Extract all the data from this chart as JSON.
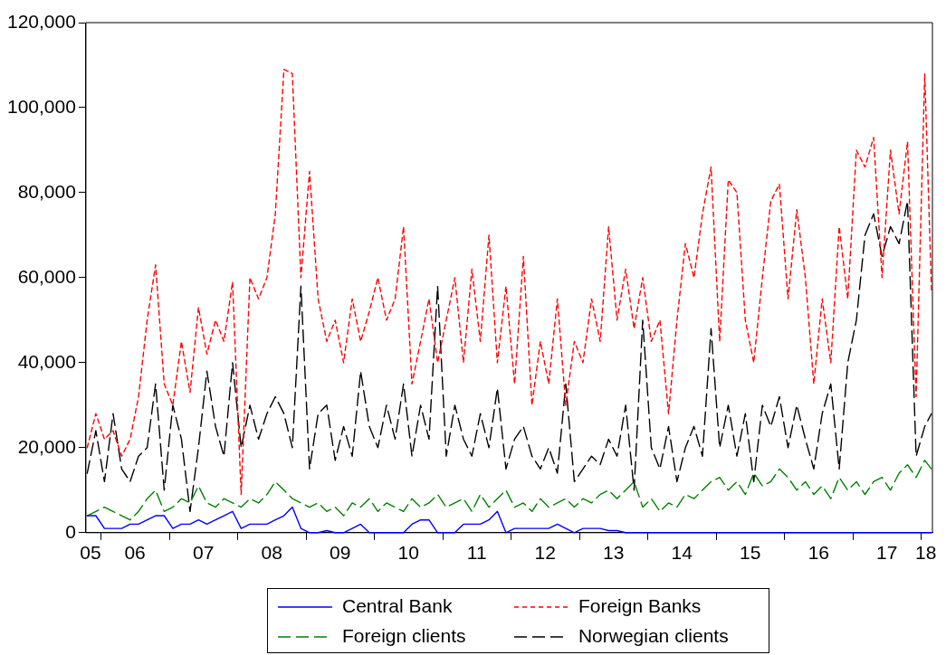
{
  "chart_data": {
    "type": "line",
    "x": [
      "2005-10-19",
      "2005-12-04",
      "2006-01-19",
      "2006-03-06",
      "2006-04-21",
      "2006-06-05",
      "2006-07-20",
      "2006-09-04",
      "2006-10-19",
      "2006-12-04",
      "2007-01-19",
      "2007-03-06",
      "2007-04-21",
      "2007-06-05",
      "2007-07-20",
      "2007-09-04",
      "2007-10-19",
      "2007-12-04",
      "2008-01-19",
      "2008-03-06",
      "2008-04-21",
      "2008-06-05",
      "2008-07-20",
      "2008-09-04",
      "2008-10-19",
      "2008-12-04",
      "2009-01-19",
      "2009-03-06",
      "2009-04-21",
      "2009-06-05",
      "2009-07-20",
      "2009-09-04",
      "2009-10-19",
      "2009-12-04",
      "2010-01-19",
      "2010-03-06",
      "2010-04-21",
      "2010-06-05",
      "2010-07-20",
      "2010-09-04",
      "2010-10-19",
      "2010-12-04",
      "2011-01-19",
      "2011-03-06",
      "2011-04-21",
      "2011-06-05",
      "2011-07-20",
      "2011-09-04",
      "2011-10-19",
      "2011-12-04",
      "2012-01-19",
      "2012-03-06",
      "2012-04-21",
      "2012-06-05",
      "2012-07-20",
      "2012-09-04",
      "2012-10-19",
      "2012-12-04",
      "2013-01-19",
      "2013-03-06",
      "2013-04-21",
      "2013-06-05",
      "2013-07-20",
      "2013-09-04",
      "2013-10-19",
      "2013-12-04",
      "2014-01-19",
      "2014-03-06",
      "2014-04-21",
      "2014-06-05",
      "2014-07-20",
      "2014-09-04",
      "2014-10-19",
      "2014-12-04",
      "2015-01-19",
      "2015-03-06",
      "2015-04-21",
      "2015-06-05",
      "2015-07-20",
      "2015-09-04",
      "2015-10-19",
      "2015-12-04",
      "2016-01-19",
      "2016-03-06",
      "2016-04-21",
      "2016-06-05",
      "2016-07-20",
      "2016-09-04",
      "2016-10-19",
      "2016-12-04",
      "2017-01-19",
      "2017-03-06",
      "2017-04-21",
      "2017-06-05",
      "2017-07-20",
      "2017-09-04",
      "2017-10-19",
      "2017-12-04",
      "2018-01-19",
      "2018-02-24"
    ],
    "series": [
      {
        "name": "Central Bank",
        "color": "#0000ff",
        "line_style": "solid",
        "values": [
          4000,
          4000,
          1000,
          1000,
          1000,
          2000,
          2000,
          3000,
          4000,
          4000,
          1000,
          2000,
          2000,
          3000,
          2000,
          3000,
          4000,
          5000,
          1000,
          2000,
          2000,
          2000,
          3000,
          4000,
          6000,
          1000,
          0,
          0,
          500,
          0,
          0,
          1000,
          2000,
          0,
          0,
          0,
          0,
          0,
          2000,
          3000,
          3000,
          0,
          0,
          0,
          2000,
          2000,
          2000,
          3000,
          5000,
          0,
          1000,
          1000,
          1000,
          1000,
          1000,
          2000,
          1000,
          0,
          1000,
          1000,
          1000,
          500,
          500,
          0,
          0,
          0,
          0,
          0,
          0,
          0,
          0,
          0,
          0,
          0,
          0,
          0,
          0,
          0,
          0,
          0,
          0,
          0,
          0,
          0,
          0,
          0,
          0,
          0,
          0,
          0,
          0,
          0,
          0,
          0,
          0,
          0,
          0,
          0,
          0,
          0
        ]
      },
      {
        "name": "Foreign Banks",
        "color": "#ff0000",
        "line_style": "dotted",
        "values": [
          20000,
          28000,
          22000,
          24000,
          18000,
          22000,
          32000,
          50000,
          63000,
          35000,
          30000,
          45000,
          33000,
          53000,
          42000,
          50000,
          45000,
          59000,
          9000,
          60000,
          55000,
          60000,
          75000,
          109000,
          108000,
          60000,
          85000,
          55000,
          45000,
          50000,
          40000,
          55000,
          45000,
          52000,
          60000,
          50000,
          55000,
          72000,
          35000,
          45000,
          55000,
          40000,
          50000,
          60000,
          40000,
          62000,
          45000,
          70000,
          40000,
          58000,
          35000,
          65000,
          30000,
          45000,
          35000,
          55000,
          30000,
          45000,
          40000,
          55000,
          45000,
          72000,
          50000,
          62000,
          48000,
          60000,
          45000,
          50000,
          28000,
          50000,
          68000,
          60000,
          75000,
          86000,
          45000,
          83000,
          80000,
          50000,
          40000,
          60000,
          78000,
          82000,
          55000,
          76000,
          60000,
          35000,
          55000,
          40000,
          72000,
          55000,
          90000,
          86000,
          93000,
          60000,
          90000,
          75000,
          92000,
          32000,
          108000,
          57000
        ]
      },
      {
        "name": "Foreign clients",
        "color": "#008000",
        "line_style": "dashed",
        "values": [
          4000,
          5000,
          6000,
          5000,
          4000,
          3000,
          5000,
          8000,
          10000,
          5000,
          6000,
          8000,
          7000,
          11000,
          7000,
          6000,
          8000,
          7000,
          6000,
          8000,
          7000,
          9000,
          12000,
          10000,
          8000,
          7000,
          6000,
          7000,
          5000,
          6000,
          4000,
          7000,
          6000,
          8000,
          5000,
          7000,
          6000,
          5000,
          8000,
          6000,
          7000,
          9000,
          6000,
          7000,
          8000,
          5000,
          9000,
          6000,
          8000,
          10000,
          6000,
          7000,
          5000,
          8000,
          6000,
          7000,
          8000,
          6000,
          8000,
          7000,
          9000,
          10000,
          8000,
          10000,
          12000,
          6000,
          8000,
          5000,
          7000,
          6000,
          9000,
          8000,
          10000,
          12000,
          13000,
          10000,
          12000,
          9000,
          14000,
          11000,
          12000,
          15000,
          13000,
          10000,
          12000,
          9000,
          11000,
          8000,
          13000,
          10000,
          12000,
          9000,
          12000,
          13000,
          10000,
          14000,
          16000,
          13000,
          17000,
          15000
        ]
      },
      {
        "name": "Norwegian clients",
        "color": "#000000",
        "line_style": "dashed",
        "values": [
          14000,
          24000,
          12000,
          28000,
          15000,
          12000,
          18000,
          20000,
          35000,
          10000,
          30000,
          22000,
          5000,
          20000,
          38000,
          25000,
          18000,
          40000,
          20000,
          30000,
          22000,
          28000,
          32000,
          28000,
          20000,
          58000,
          15000,
          28000,
          30000,
          17000,
          25000,
          18000,
          38000,
          25000,
          20000,
          30000,
          22000,
          35000,
          18000,
          30000,
          22000,
          58000,
          18000,
          30000,
          22000,
          18000,
          28000,
          20000,
          34000,
          15000,
          22000,
          25000,
          18000,
          15000,
          20000,
          14000,
          35000,
          12000,
          15000,
          18000,
          16000,
          22000,
          18000,
          30000,
          10000,
          50000,
          20000,
          15000,
          25000,
          12000,
          20000,
          25000,
          18000,
          48000,
          20000,
          30000,
          18000,
          28000,
          12000,
          30000,
          25000,
          32000,
          20000,
          30000,
          22000,
          15000,
          28000,
          35000,
          15000,
          40000,
          50000,
          70000,
          75000,
          65000,
          72000,
          68000,
          78000,
          18000,
          25000,
          28000
        ]
      }
    ],
    "xlim": [
      "2005-10-12",
      "2018-03-01"
    ],
    "xticks": [
      {
        "value": "2005-11-05",
        "label": "05"
      },
      {
        "value": "2006",
        "label": null
      },
      {
        "value": "2006-07-01",
        "label": "06"
      },
      {
        "value": "2007",
        "label": null
      },
      {
        "value": "2007-07-01",
        "label": "07"
      },
      {
        "value": "2008",
        "label": null
      },
      {
        "value": "2008-07-01",
        "label": "08"
      },
      {
        "value": "2009",
        "label": null
      },
      {
        "value": "2009-07-01",
        "label": "09"
      },
      {
        "value": "2010",
        "label": null
      },
      {
        "value": "2010-07-01",
        "label": "10"
      },
      {
        "value": "2011",
        "label": null
      },
      {
        "value": "2011-07-01",
        "label": "11"
      },
      {
        "value": "2012",
        "label": null
      },
      {
        "value": "2012-07-01",
        "label": "12"
      },
      {
        "value": "2013",
        "label": null
      },
      {
        "value": "2013-07-01",
        "label": "13"
      },
      {
        "value": "2014",
        "label": null
      },
      {
        "value": "2014-07-01",
        "label": "14"
      },
      {
        "value": "2015",
        "label": null
      },
      {
        "value": "2015-07-01",
        "label": "15"
      },
      {
        "value": "2016",
        "label": null
      },
      {
        "value": "2016-07-01",
        "label": "16"
      },
      {
        "value": "2017",
        "label": null
      },
      {
        "value": "2017-07-01",
        "label": "17"
      },
      {
        "value": "2018",
        "label": null
      },
      {
        "value": "2018-01-25",
        "label": "18"
      }
    ],
    "ylim": [
      0,
      120000
    ],
    "yticks": [
      0,
      {
        "value": 20000,
        "label": "20,000"
      },
      {
        "value": 40000,
        "label": "40,000"
      },
      {
        "value": 60000,
        "label": "60,000"
      },
      {
        "value": 80000,
        "label": "80,000"
      },
      {
        "value": 100000,
        "label": "100,000"
      },
      {
        "value": 120000,
        "label": "120,000"
      }
    ],
    "legend": "bottom"
  }
}
